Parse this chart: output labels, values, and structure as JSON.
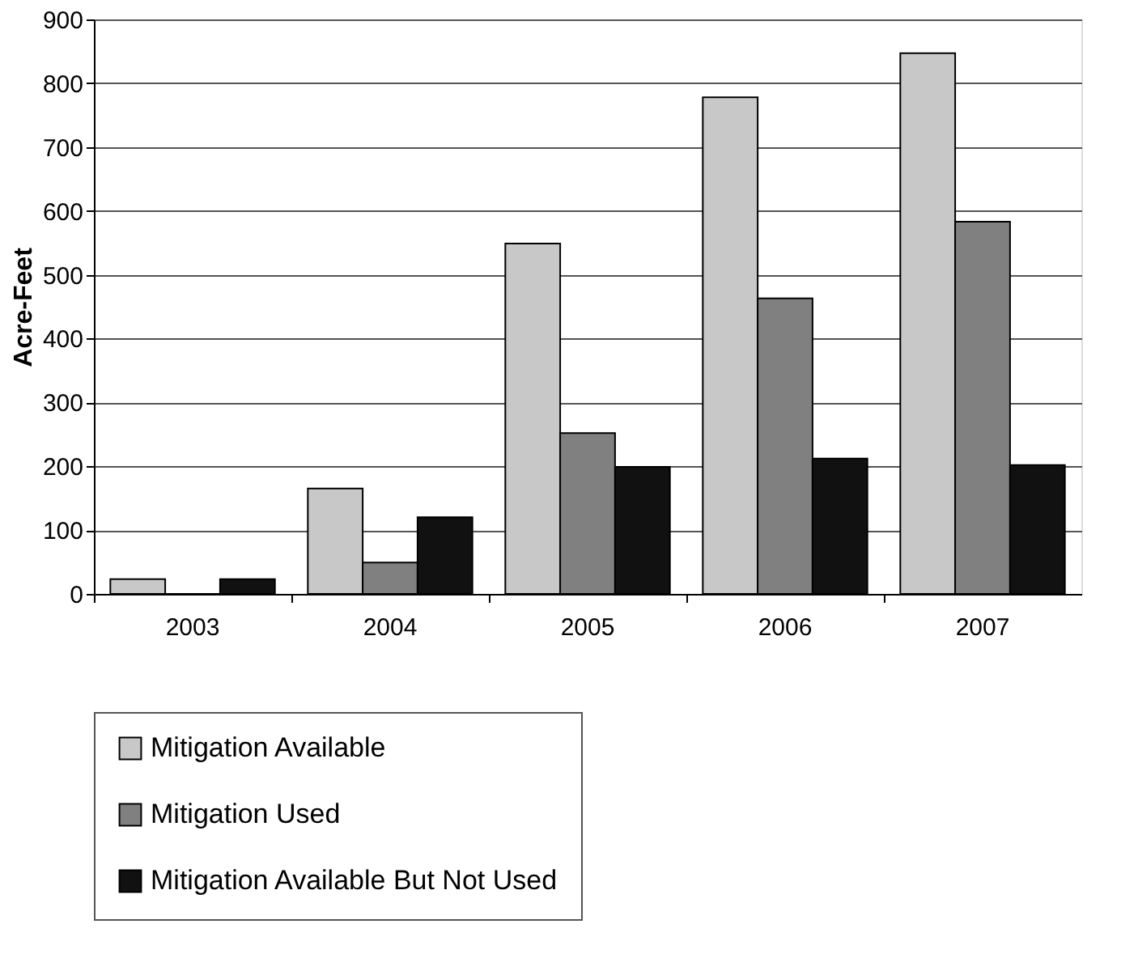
{
  "chart_data": {
    "type": "bar",
    "ylabel": "Acre-Feet",
    "categories": [
      "2003",
      "2004",
      "2005",
      "2006",
      "2007"
    ],
    "series": [
      {
        "name": "Mitigation Available",
        "color": "#c8c8c8",
        "values": [
          23,
          165,
          549,
          778,
          847
        ]
      },
      {
        "name": "Mitigation Used",
        "color": "#808080",
        "values": [
          0,
          49,
          252,
          463,
          583
        ]
      },
      {
        "name": "Mitigation Available But Not Used",
        "color": "#111111",
        "values": [
          23,
          120,
          199,
          212,
          202
        ]
      }
    ],
    "ylim": [
      0,
      900
    ],
    "yticks": [
      0,
      100,
      200,
      300,
      400,
      500,
      600,
      700,
      800,
      900
    ],
    "grid": "y",
    "legend": "bottom"
  }
}
